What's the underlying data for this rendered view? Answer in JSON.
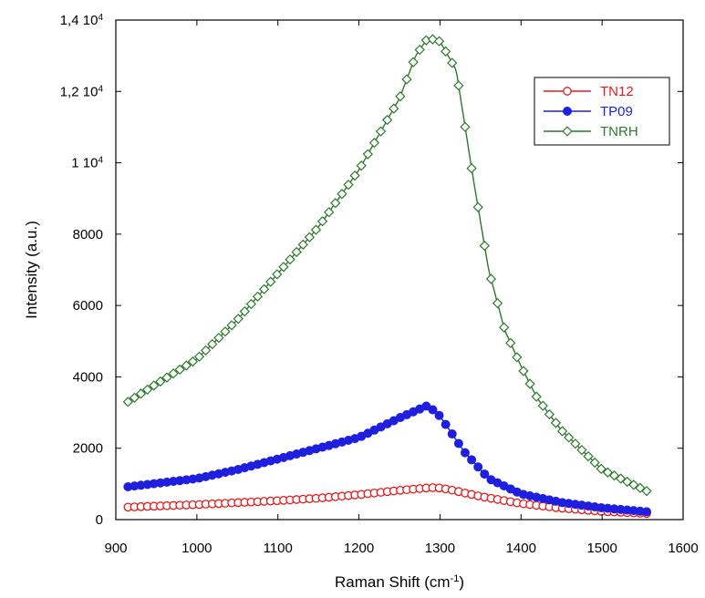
{
  "chart_data": {
    "type": "line",
    "xlabel": "Raman Shift (cm",
    "xlabel_sup": "-1",
    "xlabel_end": ")",
    "ylabel": "Intensity (a.u.)",
    "xlim": [
      900,
      1600
    ],
    "ylim": [
      0,
      14000
    ],
    "x_ticks": [
      {
        "value": 900,
        "label": "900"
      },
      {
        "value": 1000,
        "label": "1000"
      },
      {
        "value": 1100,
        "label": "1100"
      },
      {
        "value": 1200,
        "label": "1200"
      },
      {
        "value": 1300,
        "label": "1300"
      },
      {
        "value": 1400,
        "label": "1400"
      },
      {
        "value": 1500,
        "label": "1500"
      },
      {
        "value": 1600,
        "label": "1600"
      }
    ],
    "y_ticks": [
      {
        "value": 0,
        "label": "0",
        "sup": ""
      },
      {
        "value": 2000,
        "label": "2000",
        "sup": ""
      },
      {
        "value": 4000,
        "label": "4000",
        "sup": ""
      },
      {
        "value": 6000,
        "label": "6000",
        "sup": ""
      },
      {
        "value": 8000,
        "label": "8000",
        "sup": ""
      },
      {
        "value": 10000,
        "label": "1 10",
        "sup": "4"
      },
      {
        "value": 12000,
        "label": "1,2 10",
        "sup": "4"
      },
      {
        "value": 14000,
        "label": "1,4 10",
        "sup": "4"
      }
    ],
    "grid": false,
    "legend_position": "top-right",
    "series": [
      {
        "name": "TN12",
        "color": "#e8191b",
        "marker": "open-circle",
        "x": [
          915,
          1000,
          1100,
          1150,
          1200,
          1250,
          1280,
          1295,
          1310,
          1350,
          1400,
          1450,
          1500,
          1555
        ],
        "y": [
          350,
          420,
          530,
          600,
          700,
          820,
          880,
          900,
          850,
          650,
          450,
          320,
          230,
          170
        ]
      },
      {
        "name": "TP09",
        "color": "#1f1fe0",
        "marker": "filled-circle",
        "x": [
          915,
          1000,
          1050,
          1100,
          1150,
          1200,
          1250,
          1285,
          1300,
          1330,
          1360,
          1400,
          1450,
          1500,
          1555
        ],
        "y": [
          920,
          1150,
          1400,
          1700,
          2000,
          2300,
          2850,
          3200,
          2900,
          1900,
          1150,
          720,
          480,
          330,
          220
        ]
      },
      {
        "name": "TNRH",
        "color": "#2a7a2a",
        "marker": "open-diamond",
        "x": [
          915,
          950,
          1000,
          1050,
          1100,
          1150,
          1200,
          1250,
          1270,
          1285,
          1300,
          1320,
          1340,
          1360,
          1380,
          1400,
          1420,
          1450,
          1500,
          1555
        ],
        "y": [
          3300,
          3800,
          4500,
          5600,
          6900,
          8200,
          9800,
          11800,
          13000,
          13500,
          13400,
          12600,
          9700,
          7000,
          5300,
          4300,
          3400,
          2500,
          1400,
          800
        ]
      }
    ]
  }
}
